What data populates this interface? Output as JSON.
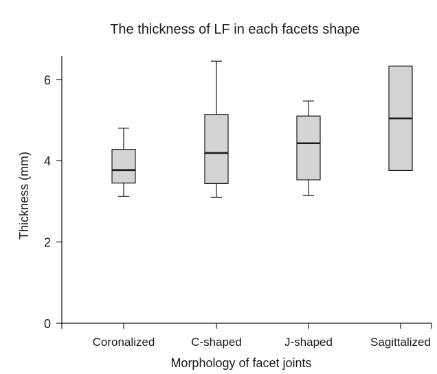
{
  "chart_data": {
    "type": "box",
    "title": "The thickness of LF in each  facets shape",
    "xlabel": "Morphology of facet joints",
    "ylabel": "Thickness (mm)",
    "ylim": [
      0,
      6.6
    ],
    "yticks": [
      0,
      2,
      4,
      6
    ],
    "grid": false,
    "box_color": "#d4d4d4",
    "categories": [
      "Coronalized",
      "C-shaped",
      "J-shaped",
      "Sagittalized"
    ],
    "boxes": [
      {
        "category": "Coronalized",
        "min": 3.12,
        "q1": 3.45,
        "median": 3.77,
        "q3": 4.28,
        "max": 4.8
      },
      {
        "category": "C-shaped",
        "min": 3.1,
        "q1": 3.44,
        "median": 4.19,
        "q3": 5.14,
        "max": 6.45
      },
      {
        "category": "J-shaped",
        "min": 3.15,
        "q1": 3.53,
        "median": 4.43,
        "q3": 5.1,
        "max": 5.47
      },
      {
        "category": "Sagittalized",
        "min": 3.76,
        "q1": 3.76,
        "median": 5.04,
        "q3": 6.33,
        "max": 6.33
      }
    ]
  }
}
